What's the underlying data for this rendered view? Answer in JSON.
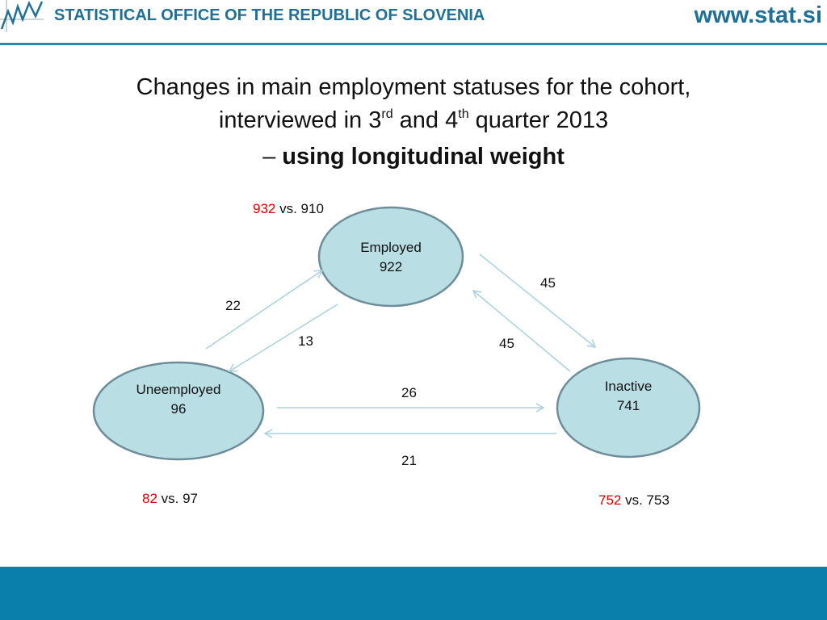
{
  "header": {
    "org_name": "STATISTICAL OFFICE OF THE REPUBLIC OF SLOVENIA",
    "site_url": "www.stat.si"
  },
  "title": {
    "line1": "Changes in main employment statuses for the cohort,",
    "line2_a": "interviewed in 3",
    "line2_sup1": "rd",
    "line2_b": " and 4",
    "line2_sup2": "th",
    "line2_c": " quarter 2013",
    "line3_dash": "– ",
    "line3_bold": "using longitudinal weight"
  },
  "nodes": {
    "employed": {
      "name": "Employed",
      "value": "922"
    },
    "unemployed": {
      "name": "Uneemployed",
      "value": "96"
    },
    "inactive": {
      "name": "Inactive",
      "value": "741"
    }
  },
  "flows": {
    "unemployed_to_employed": "22",
    "employed_to_unemployed": "13",
    "employed_to_inactive": "45",
    "inactive_to_employed": "45",
    "unemployed_to_inactive": "26",
    "inactive_to_unemployed": "21"
  },
  "comparisons": {
    "employed": {
      "highlight": "932",
      "rest": " vs. 910"
    },
    "unemployed": {
      "highlight": "82",
      "rest": " vs. 97"
    },
    "inactive": {
      "highlight": "752",
      "rest": " vs. 753"
    }
  },
  "colors": {
    "brand": "#1f6f96",
    "node_fill": "#b9dfe4",
    "node_stroke": "#6e8c9a",
    "arrow": "#a9d2dc",
    "highlight": "#e00000",
    "footer": "#0b7fab"
  }
}
